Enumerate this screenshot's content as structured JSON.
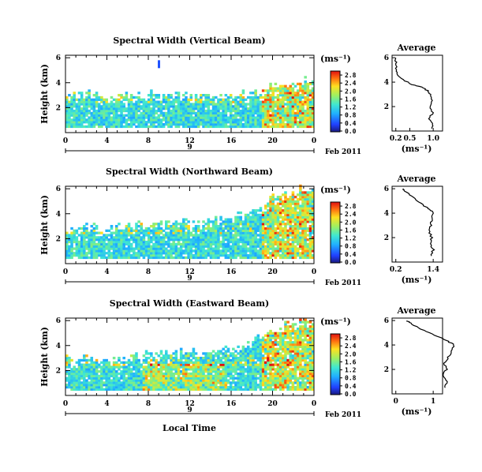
{
  "chart_data": [
    {
      "type": "heatmap",
      "title": "Spectral Width (Vertical Beam)",
      "ylabel": "Height (km)",
      "x_ticks": [
        "0",
        "4",
        "8",
        "12",
        "16",
        "20",
        "0"
      ],
      "y_ticks": [
        "2",
        "4",
        "6"
      ],
      "date_marker": "9",
      "date_label": "Feb 2011",
      "colorbar": {
        "unit": "(ms⁻¹)",
        "ticks": [
          "0.0",
          "0.4",
          "0.8",
          "1.2",
          "1.6",
          "2.0",
          "2.4",
          "2.8"
        ]
      },
      "profile": {
        "title": "Average",
        "xlabel": "(ms⁻¹)",
        "x_ticks": [
          "0.2",
          "0.5",
          "1.0"
        ],
        "y_ticks": [
          "2",
          "4",
          "6"
        ],
        "height_km": [
          0.2,
          0.5,
          1.0,
          1.5,
          2.0,
          2.5,
          3.0,
          3.3,
          3.6,
          3.8,
          4.2,
          4.6,
          5.0,
          5.5,
          6.0
        ],
        "width_ms": [
          0.95,
          1.0,
          0.9,
          1.0,
          0.92,
          0.98,
          0.95,
          0.88,
          0.75,
          0.55,
          0.35,
          0.25,
          0.22,
          0.2,
          0.2
        ]
      },
      "top_height_km": [
        3.2,
        3.4,
        2.9,
        3.0,
        3.1,
        3.1,
        3.0,
        3.1,
        3.0,
        3.1,
        3.1,
        3.1,
        3.4,
        3.8,
        3.9,
        4.2
      ]
    },
    {
      "type": "heatmap",
      "title": "Spectral Width (Northward Beam)",
      "ylabel": "Height (km)",
      "x_ticks": [
        "0",
        "4",
        "8",
        "12",
        "16",
        "20",
        "0"
      ],
      "y_ticks": [
        "2",
        "4",
        "6"
      ],
      "date_marker": "9",
      "date_label": "Feb 2011",
      "colorbar": {
        "unit": "(ms⁻¹)",
        "ticks": [
          "0.0",
          "0.4",
          "0.8",
          "1.2",
          "1.6",
          "2.0",
          "2.4",
          "2.8"
        ]
      },
      "profile": {
        "title": "Average",
        "xlabel": "(ms⁻¹)",
        "x_ticks": [
          "0.2",
          "1.4"
        ],
        "y_ticks": [
          "2",
          "4",
          "6"
        ],
        "height_km": [
          0.5,
          1.0,
          1.5,
          2.0,
          2.5,
          3.0,
          3.5,
          4.0,
          4.3,
          4.6,
          5.0,
          5.4,
          5.8,
          6.0
        ],
        "width_ms": [
          1.35,
          1.4,
          1.3,
          1.35,
          1.28,
          1.32,
          1.35,
          1.42,
          1.3,
          1.1,
          0.9,
          0.7,
          0.5,
          0.45
        ]
      },
      "top_height_km": [
        2.9,
        3.1,
        2.8,
        3.0,
        3.2,
        3.1,
        3.4,
        3.5,
        3.4,
        3.6,
        3.8,
        4.0,
        4.6,
        5.4,
        5.6,
        6.0
      ]
    },
    {
      "type": "heatmap",
      "title": "Spectral Width (Eastward Beam)",
      "ylabel": "Height (km)",
      "xlabel": "Local Time",
      "x_ticks": [
        "0",
        "4",
        "8",
        "12",
        "16",
        "20",
        "0"
      ],
      "y_ticks": [
        "2",
        "4",
        "6"
      ],
      "date_marker": "9",
      "date_label": "Feb 2011",
      "colorbar": {
        "unit": "(ms⁻¹)",
        "ticks": [
          "0.0",
          "0.4",
          "0.8",
          "1.2",
          "1.6",
          "2.0",
          "2.4",
          "2.8"
        ]
      },
      "profile": {
        "title": "Average",
        "xlabel": "(ms⁻¹)",
        "x_ticks": [
          "0",
          "1"
        ],
        "y_ticks": [
          "2",
          "4",
          "6"
        ],
        "height_km": [
          0.5,
          1.0,
          1.5,
          2.0,
          2.5,
          3.0,
          3.5,
          4.0,
          4.3,
          4.6,
          5.0,
          5.4,
          5.8,
          6.0
        ],
        "width_ms": [
          1.3,
          1.4,
          1.25,
          1.35,
          1.3,
          1.4,
          1.5,
          1.55,
          1.4,
          1.2,
          0.9,
          0.6,
          0.4,
          0.3
        ]
      },
      "top_height_km": [
        3.0,
        3.2,
        2.8,
        3.0,
        3.3,
        3.4,
        3.5,
        3.6,
        3.5,
        3.7,
        3.9,
        4.1,
        4.8,
        5.4,
        5.8,
        6.0
      ]
    }
  ]
}
